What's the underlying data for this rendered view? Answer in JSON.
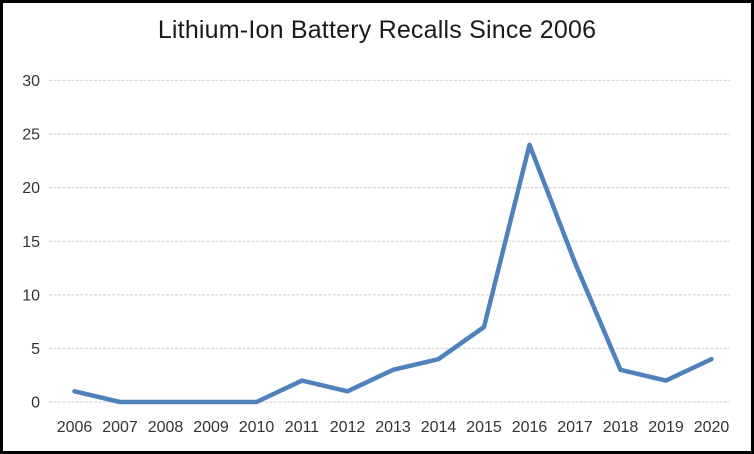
{
  "window": {
    "background": "#FFFFFF",
    "border_color": "#000000"
  },
  "chart_data": {
    "type": "line",
    "title": "Lithium-Ion Battery Recalls Since 2006",
    "categories": [
      "2006",
      "2007",
      "2008",
      "2009",
      "2010",
      "2011",
      "2012",
      "2013",
      "2014",
      "2015",
      "2016",
      "2017",
      "2018",
      "2019",
      "2020"
    ],
    "values": [
      1,
      0,
      0,
      0,
      0,
      2,
      1,
      3,
      4,
      7,
      24,
      13,
      3,
      2,
      4
    ],
    "xlabel": "",
    "ylabel": "",
    "ylim": [
      0,
      30
    ],
    "yticks": [
      0,
      5,
      10,
      15,
      20,
      25,
      30
    ],
    "grid": true,
    "legend": false,
    "line_color": "#4F81BD",
    "gridline_color": "#D9D9D9",
    "tick_label_color": "#333333",
    "title_color": "#1A1A1A"
  }
}
